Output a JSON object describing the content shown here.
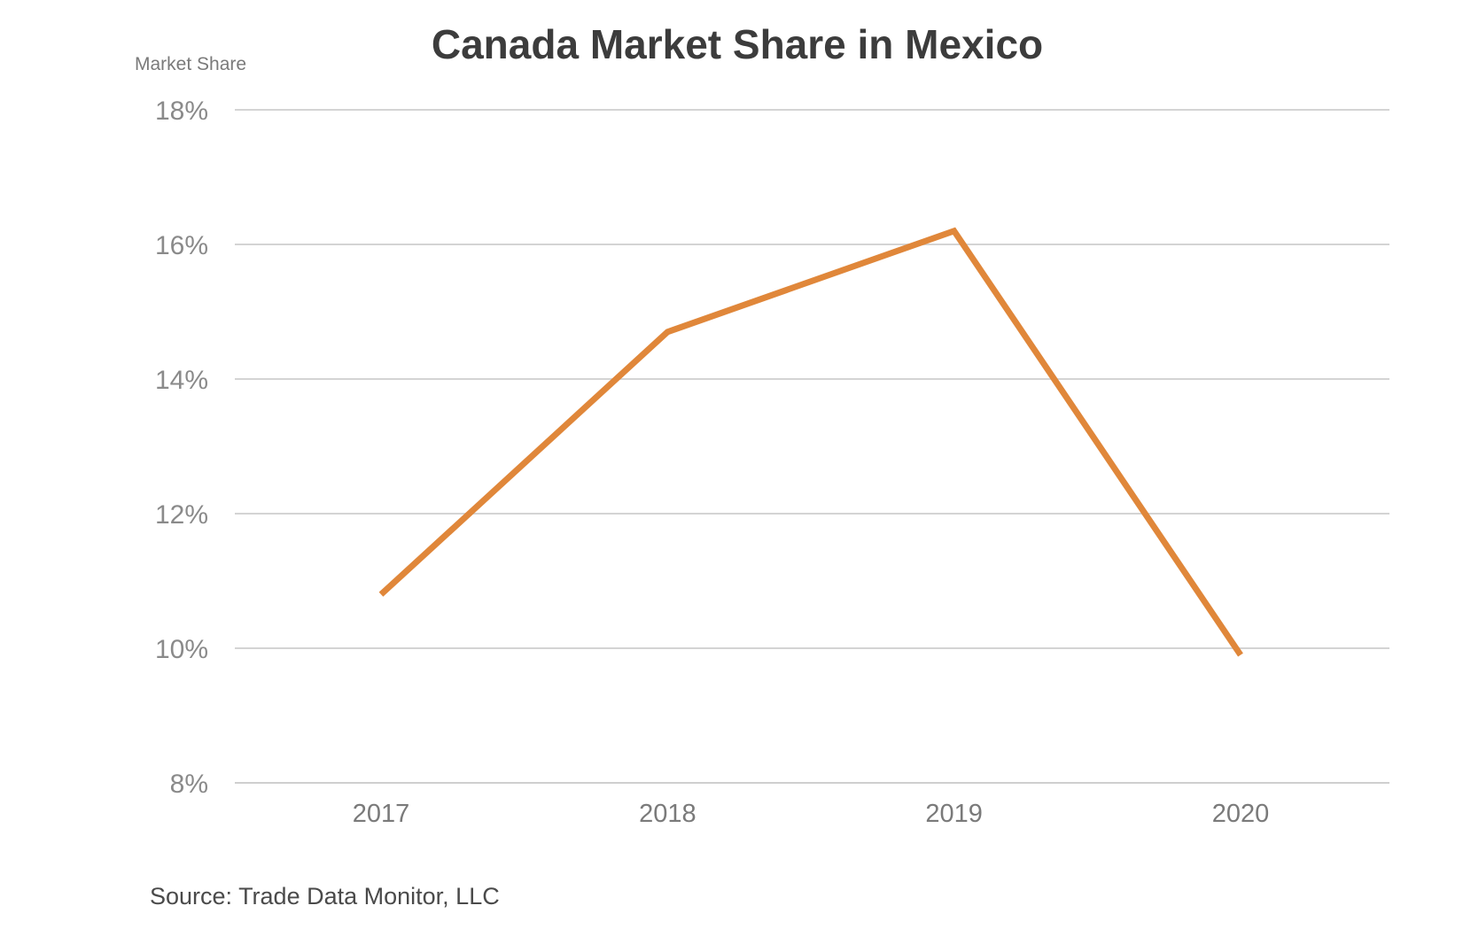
{
  "chart_data": {
    "type": "line",
    "title": "Canada Market Share in Mexico",
    "ylabel": "Market Share",
    "xlabel": "",
    "source": "Source: Trade Data Monitor, LLC",
    "categories": [
      "2017",
      "2018",
      "2019",
      "2020"
    ],
    "series": [
      {
        "values": [
          10.8,
          14.7,
          16.2,
          9.9
        ],
        "color": "#E0873A"
      }
    ],
    "ylim": [
      8,
      18
    ],
    "yticks": [
      8,
      10,
      12,
      14,
      16,
      18
    ],
    "ytick_labels": [
      "8%",
      "10%",
      "12%",
      "14%",
      "16%",
      "18%"
    ],
    "grid": true,
    "legend": "none"
  }
}
